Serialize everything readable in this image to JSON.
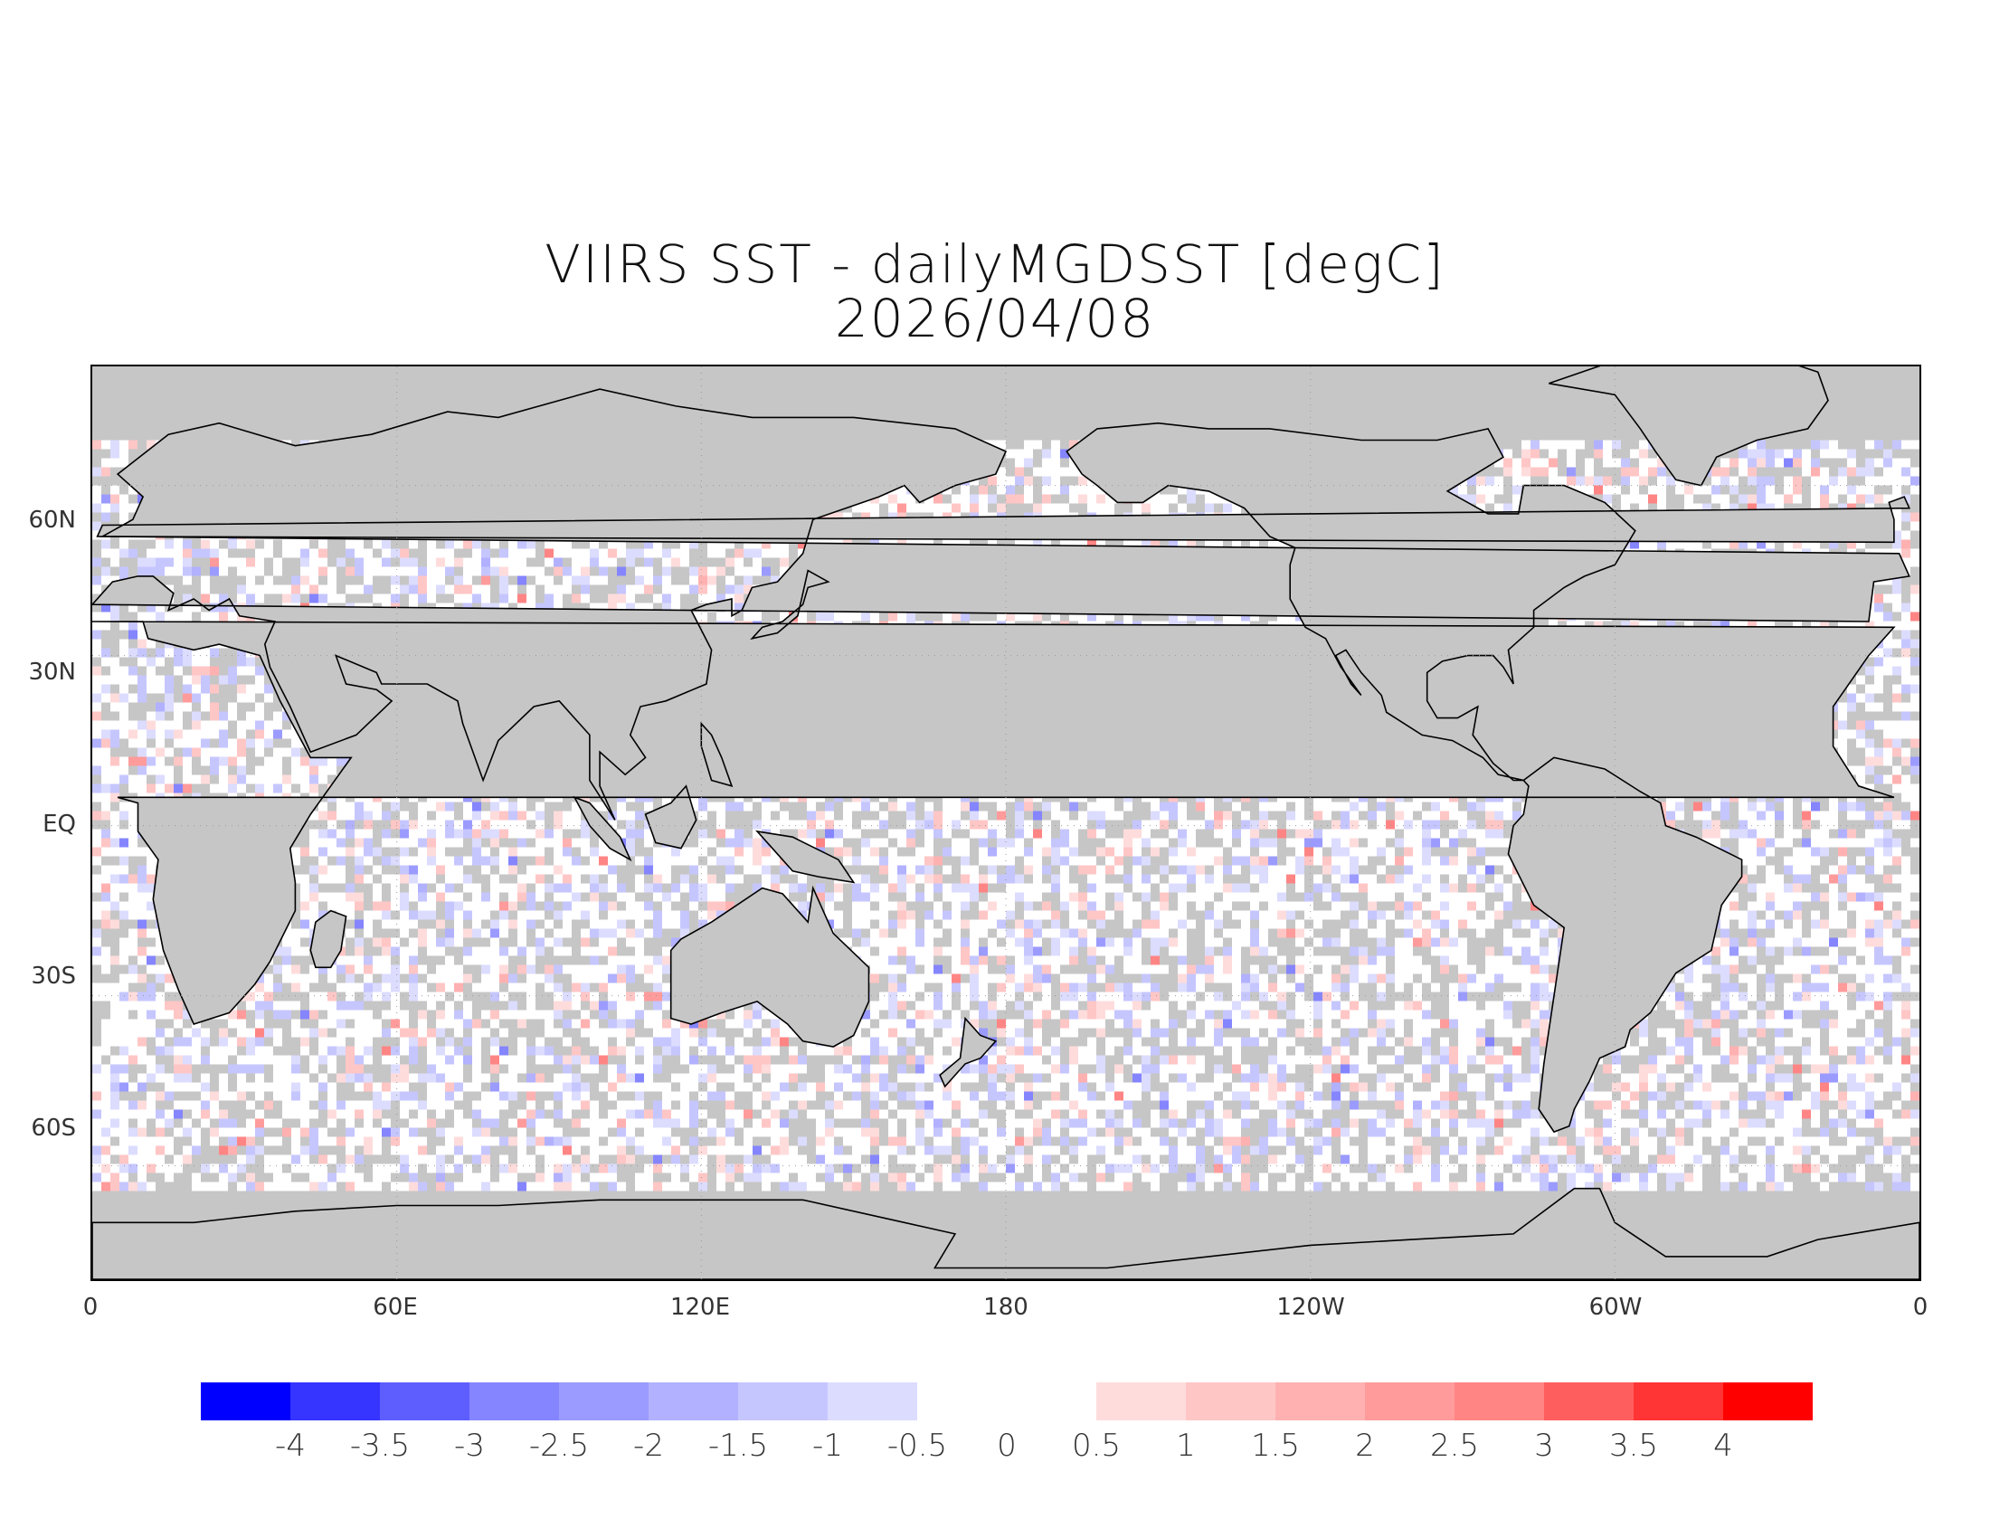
{
  "title_line1": "VIIRS SST - dailyMGDSST [degC]",
  "title_line2": "2026/04/08",
  "map": {
    "land_color": "#c6c6c6",
    "lat_labels": [
      "60N",
      "30N",
      "EQ",
      "30S",
      "60S"
    ],
    "lon_labels": [
      "0",
      "60E",
      "120E",
      "180",
      "120W",
      "60W",
      "0"
    ]
  },
  "colorbar": {
    "negative_colors": [
      "#0000ff",
      "#3535ff",
      "#5e5eff",
      "#8585ff",
      "#9b9bff",
      "#b1b1ff",
      "#c6c6ff",
      "#dcdcff"
    ],
    "positive_colors": [
      "#ffdcdc",
      "#ffc6c6",
      "#ffb1b1",
      "#ff9b9b",
      "#ff8585",
      "#ff5e5e",
      "#ff3535",
      "#ff0000"
    ],
    "labels": [
      "-4",
      "-3.5",
      "-3",
      "-2.5",
      "-2",
      "-1.5",
      "-1",
      "-0.5",
      "0",
      "0.5",
      "1",
      "1.5",
      "2",
      "2.5",
      "3",
      "3.5",
      "4"
    ]
  }
}
